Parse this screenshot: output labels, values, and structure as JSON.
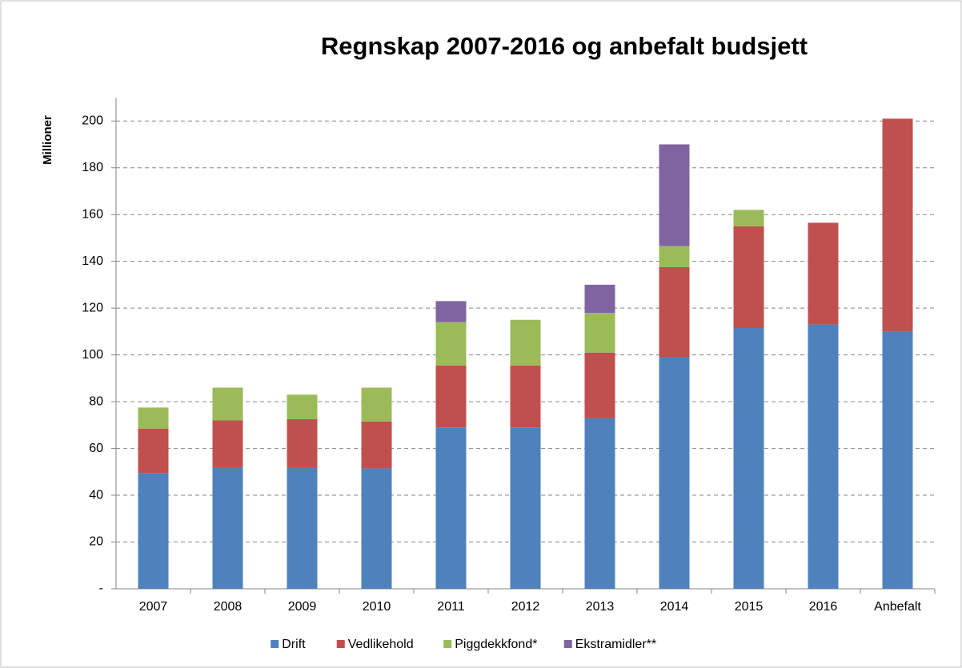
{
  "chart_data": {
    "type": "stacked_bar",
    "title": "Regnskap 2007-2016  og anbefalt budsjett",
    "y_label": "Millioner",
    "categories": [
      "2007",
      "2008",
      "2009",
      "2010",
      "2011",
      "2012",
      "2013",
      "2014",
      "2015",
      "2016",
      "Anbefalt"
    ],
    "series": [
      {
        "name": "Drift",
        "color": "#4f81bd",
        "values": [
          49.5,
          52,
          52,
          51.5,
          69,
          69,
          73,
          99,
          111.5,
          113,
          110
        ]
      },
      {
        "name": "Vedlikehold",
        "color": "#c0504d",
        "values": [
          19,
          20,
          20.5,
          20,
          26.5,
          26.5,
          28,
          38.5,
          43.5,
          43.5,
          91
        ]
      },
      {
        "name": "Piggdekkfond*",
        "color": "#9bbb59",
        "values": [
          9,
          14,
          10.5,
          14.5,
          18.5,
          19.5,
          17,
          9,
          7,
          null,
          null
        ]
      },
      {
        "name": "Ekstramidler**",
        "color": "#8064a2",
        "values": [
          null,
          null,
          null,
          null,
          9,
          null,
          12,
          43.5,
          null,
          null,
          null
        ]
      }
    ],
    "ylim": [
      0,
      210
    ],
    "yticks": [
      {
        "value": 0,
        "label": "-"
      },
      20,
      40,
      60,
      80,
      100,
      120,
      140,
      160,
      180,
      200
    ],
    "grid": true,
    "legend": "bottom"
  }
}
